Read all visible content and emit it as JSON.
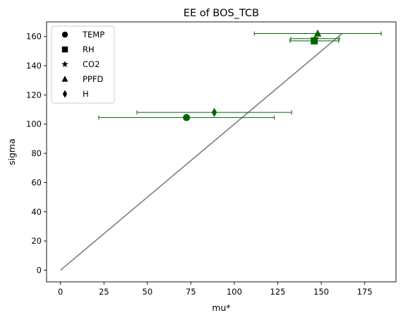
{
  "chart_data": {
    "type": "scatter",
    "title": "EE of BOS_TCB",
    "xlabel": "mu*",
    "ylabel": "sigma",
    "xlim": [
      -8,
      193
    ],
    "ylim": [
      -8,
      170
    ],
    "x_ticks": [
      0,
      25,
      50,
      75,
      100,
      125,
      150,
      175
    ],
    "y_ticks": [
      0,
      20,
      40,
      60,
      80,
      100,
      120,
      140,
      160
    ],
    "grid": false,
    "legend_position": "top-left",
    "point_color": "#006400",
    "error_bar_color": "#006400",
    "reference_line": {
      "color": "#808080",
      "from": [
        0,
        0
      ],
      "to": [
        162,
        162
      ]
    },
    "series": [
      {
        "name": "TEMP",
        "marker": "circle",
        "x": 72.5,
        "y": 104.5,
        "x_err_low": 50.5,
        "x_err_high": 50.5
      },
      {
        "name": "RH",
        "marker": "square",
        "x": 146.0,
        "y": 157.0,
        "x_err_low": 14.0,
        "x_err_high": 14.0
      },
      {
        "name": "CO2",
        "marker": "star",
        "x": 146.5,
        "y": 158.5,
        "x_err_low": 14.0,
        "x_err_high": 14.0
      },
      {
        "name": "PPFD",
        "marker": "triangle",
        "x": 148.0,
        "y": 162.0,
        "x_err_low": 36.5,
        "x_err_high": 36.5
      },
      {
        "name": "H",
        "marker": "diamond",
        "x": 88.5,
        "y": 108.0,
        "x_err_low": 44.5,
        "x_err_high": 44.5
      }
    ]
  }
}
